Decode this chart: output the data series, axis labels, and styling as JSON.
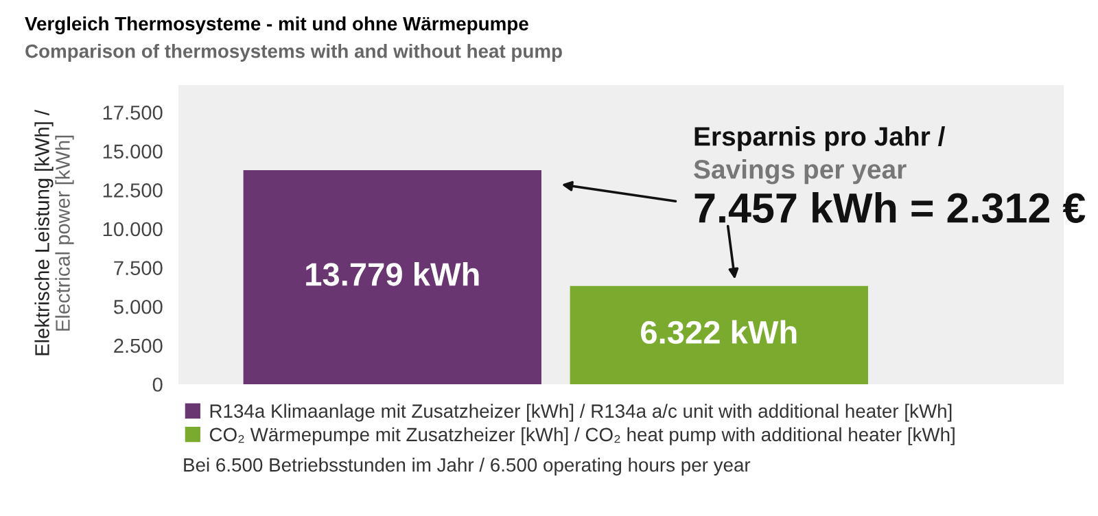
{
  "chart_data": {
    "type": "bar",
    "title": "Vergleich Thermosysteme - mit und ohne Wärmepumpe",
    "subtitle": "Comparison of thermosystems with and without heat pump",
    "ylabel": "Elektrische Leistung [kWh] /\nElectrical power [kWh]",
    "categories": [
      null
    ],
    "series": [
      {
        "name": "R134a Klimaanlage mit Zusatzheizer [kWh] / R134a a/c unit with additional heater [kWh]",
        "color": "#6a3672",
        "values": [
          13779
        ],
        "value_labels": [
          "13.779 kWh"
        ]
      },
      {
        "name": "CO₂ Wärmepumpe mit Zusatzheizer [kWh] / CO₂ heat pump with additional heater [kWh]",
        "color": "#7bab2e",
        "values": [
          6322
        ],
        "value_labels": [
          "6.322 kWh"
        ]
      }
    ],
    "ylim": [
      0,
      19250
    ],
    "yticks": [
      0,
      {
        "value": 2500,
        "label": "2.500"
      },
      {
        "value": 5000,
        "label": "5.000"
      },
      {
        "value": 7500,
        "label": "7.500"
      },
      {
        "value": 10000,
        "label": "10.000"
      },
      {
        "value": 12500,
        "label": "12.500"
      },
      {
        "value": 15000,
        "label": "15.000"
      },
      {
        "value": 17500,
        "label": "17.500"
      }
    ],
    "grid": false,
    "legend": "bottom",
    "annotations": [
      "Ersparnis pro Jahr /",
      "Savings per year",
      "7.457 kWh = 2.312 €",
      "Bei 6.500 Betriebsstunden im Jahr / 6.500 operating hours per year"
    ]
  }
}
